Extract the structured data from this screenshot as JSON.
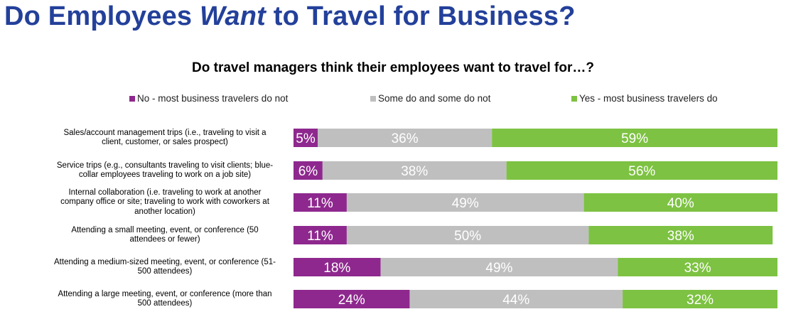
{
  "title": {
    "part1": "Do Employees ",
    "emphasis": "Want",
    "part2": " to Travel for Business?"
  },
  "chart_data": {
    "type": "bar",
    "orientation": "horizontal-stacked-100",
    "title": "Do travel managers think their employees want to travel for…?",
    "legend_position": "top",
    "categories": [
      "Sales/account management trips (i.e., traveling to visit a client, customer, or sales prospect)",
      "Service trips (e.g., consultants traveling to visit clients; blue-collar employees traveling to work on a job site)",
      "Internal collaboration (i.e. traveling to work at another company office or site; traveling to work with coworkers at another location)",
      "Attending a small meeting, event, or conference (50 attendees or fewer)",
      "Attending a medium-sized meeting, event, or conference (51-500 attendees)",
      "Attending a large meeting, event, or conference (more than 500 attendees)"
    ],
    "category_lines": [
      [
        "Sales/account management trips (i.e., traveling to visit a",
        "client, customer, or sales prospect)"
      ],
      [
        "Service trips (e.g., consultants traveling to visit clients; blue-",
        "collar employees traveling to work on a job site)"
      ],
      [
        "Internal collaboration (i.e. traveling to work at another",
        "company office or site; traveling to work with coworkers at",
        "another location)"
      ],
      [
        "Attending a small meeting, event, or conference (50",
        "attendees or fewer)"
      ],
      [
        "Attending a medium-sized meeting, event, or conference (51-",
        "500 attendees)"
      ],
      [
        "Attending a large meeting, event, or conference (more than",
        "500 attendees)"
      ]
    ],
    "series": [
      {
        "name": "No - most business travelers do not",
        "color": "#8e288e",
        "values": [
          5,
          6,
          11,
          11,
          18,
          24
        ]
      },
      {
        "name": "Some do and some do not",
        "color": "#bfbfbf",
        "values": [
          36,
          38,
          49,
          50,
          49,
          44
        ]
      },
      {
        "name": "Yes - most business travelers do",
        "color": "#7dc242",
        "values": [
          59,
          56,
          40,
          38,
          33,
          32
        ]
      }
    ],
    "value_suffix": "%",
    "xlim": [
      0,
      100
    ]
  }
}
